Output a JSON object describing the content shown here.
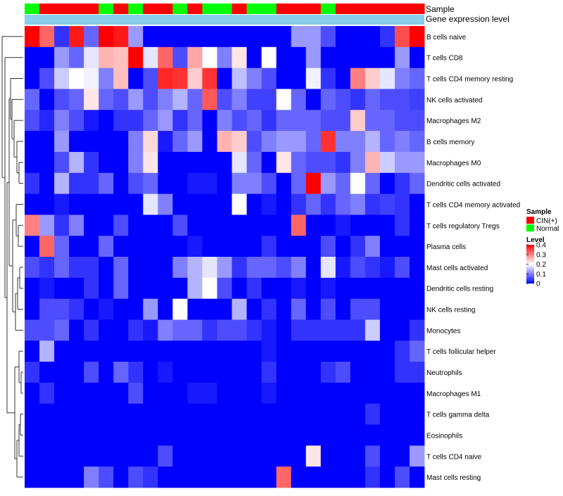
{
  "chart_data": {
    "type": "heatmap",
    "annotation_rows": [
      "Sample",
      "Gene expression level"
    ],
    "sample_groups": [
      "Normal",
      "CIN(+)",
      "CIN(+)",
      "CIN(+)",
      "CIN(+)",
      "Normal",
      "CIN(+)",
      "Normal",
      "CIN(+)",
      "CIN(+)",
      "Normal",
      "CIN(+)",
      "Normal",
      "Normal",
      "CIN(+)",
      "Normal",
      "Normal",
      "CIN(+)",
      "CIN(+)",
      "CIN(+)",
      "Normal",
      "CIN(+)",
      "CIN(+)",
      "CIN(+)",
      "CIN(+)",
      "CIN(+)",
      "CIN(+)"
    ],
    "rows": [
      "B cells naive",
      "T cells CD8",
      "T cells CD4 memory resting",
      "NK cells activated",
      "Macrophages M2",
      "B cells memory",
      "Macrophages M0",
      "Dendritic cells activated",
      "T cells CD4 memory activated",
      "T cells regulatory  Tregs",
      "Plasma cells",
      "Mast cells activated",
      "Dendritic cells resting",
      "NK cells resting",
      "Monocytes",
      "T cells follicular helper",
      "Neutrophils",
      "Macrophages M1",
      "T cells gamma delta",
      "Eosinophils",
      "T cells CD4 naive",
      "Mast cells resting"
    ],
    "values": [
      [
        0.4,
        0.32,
        0.04,
        0.38,
        0.08,
        0.4,
        0.38,
        0.12,
        0,
        0,
        0,
        0,
        0,
        0,
        0,
        0,
        0,
        0,
        0.12,
        0.12,
        0.06,
        0,
        0,
        0,
        0.04,
        0.34,
        0.4
      ],
      [
        0,
        0,
        0.12,
        0.08,
        0.18,
        0.26,
        0.25,
        0.4,
        0.18,
        0.32,
        0.06,
        0.27,
        0.2,
        0.1,
        0.22,
        0,
        0.2,
        0,
        0,
        0.12,
        0,
        0,
        0,
        0,
        0,
        0.12,
        0
      ],
      [
        0,
        0.06,
        0.16,
        0.2,
        0.19,
        0.1,
        0.25,
        0,
        0.06,
        0.37,
        0.36,
        0.24,
        0.36,
        0,
        0.15,
        0.1,
        0.06,
        0,
        0,
        0.19,
        0.04,
        0,
        0.3,
        0.24,
        0.18,
        0.1,
        0.08
      ],
      [
        0.08,
        0,
        0.06,
        0.08,
        0.22,
        0.08,
        0.06,
        0.12,
        0.06,
        0.1,
        0.14,
        0.08,
        0.33,
        0.06,
        0.1,
        0.05,
        0.05,
        0.2,
        0.08,
        0,
        0.08,
        0.06,
        0.04,
        0.08,
        0.06,
        0.06,
        0.05
      ],
      [
        0.06,
        0.03,
        0.1,
        0.06,
        0.02,
        0,
        0.04,
        0.04,
        0.08,
        0.12,
        0.04,
        0.08,
        0,
        0.1,
        0.06,
        0.08,
        0.04,
        0.08,
        0.08,
        0.08,
        0.06,
        0.06,
        0.24,
        0.08,
        0.08,
        0.06,
        0.06
      ],
      [
        0,
        0,
        0.12,
        0,
        0,
        0,
        0,
        0.1,
        0.23,
        0.02,
        0.08,
        0.12,
        0,
        0.26,
        0.24,
        0.06,
        0.1,
        0.12,
        0.12,
        0.08,
        0.36,
        0.1,
        0.1,
        0.14,
        0.08,
        0.1,
        0.08
      ],
      [
        0,
        0,
        0.06,
        0.14,
        0.04,
        0,
        0,
        0.1,
        0.22,
        0,
        0,
        0,
        0,
        0,
        0.18,
        0.08,
        0,
        0.22,
        0.08,
        0.06,
        0.06,
        0.04,
        0.1,
        0.26,
        0.16,
        0.12,
        0.12
      ],
      [
        0.04,
        0,
        0.14,
        0.04,
        0.04,
        0.08,
        0,
        0.06,
        0.08,
        0,
        0,
        0.02,
        0.02,
        0,
        0.1,
        0.1,
        0.06,
        0,
        0.08,
        0.4,
        0.12,
        0.08,
        0.2,
        0.08,
        0,
        0.04,
        0.08
      ],
      [
        0,
        0,
        0.02,
        0,
        0,
        0,
        0,
        0,
        0.18,
        0.1,
        0,
        0,
        0,
        0,
        0.2,
        0,
        0.02,
        0,
        0.04,
        0.08,
        0.04,
        0.08,
        0.1,
        0.04,
        0.05,
        0.04,
        0
      ],
      [
        0.3,
        0.12,
        0.04,
        0.1,
        0,
        0,
        0.06,
        0,
        0,
        0,
        0.06,
        0,
        0,
        0,
        0,
        0,
        0,
        0,
        0.32,
        0,
        0,
        0.02,
        0,
        0,
        0,
        0.04,
        0
      ],
      [
        0,
        0.32,
        0.08,
        0,
        0,
        0.08,
        0,
        0,
        0,
        0,
        0,
        0.02,
        0,
        0,
        0,
        0,
        0.04,
        0,
        0,
        0,
        0.06,
        0,
        0.04,
        0.1,
        0,
        0,
        0
      ],
      [
        0.06,
        0.04,
        0.08,
        0.04,
        0.04,
        0,
        0.08,
        0,
        0,
        0,
        0.1,
        0.14,
        0.18,
        0.12,
        0.04,
        0.08,
        0.08,
        0.06,
        0.1,
        0,
        0.18,
        0.02,
        0.06,
        0.04,
        0.02,
        0.06,
        0
      ],
      [
        0,
        0.02,
        0,
        0,
        0.04,
        0,
        0.08,
        0,
        0,
        0,
        0,
        0.14,
        0.2,
        0.06,
        0,
        0.04,
        0,
        0,
        0.02,
        0,
        0.02,
        0,
        0,
        0,
        0,
        0,
        0
      ],
      [
        0,
        0.06,
        0.06,
        0.04,
        0,
        0.02,
        0,
        0,
        0.12,
        0,
        0.2,
        0,
        0,
        0,
        0.14,
        0,
        0.04,
        0,
        0.08,
        0,
        0.06,
        0,
        0.06,
        0.06,
        0,
        0,
        0
      ],
      [
        0.06,
        0.06,
        0.08,
        0,
        0.04,
        0,
        0,
        0.04,
        0.02,
        0.1,
        0.08,
        0.08,
        0.04,
        0.06,
        0.06,
        0.04,
        0.02,
        0,
        0.04,
        0.04,
        0.04,
        0.04,
        0.04,
        0.16,
        0,
        0,
        0.04
      ],
      [
        0,
        0.14,
        0,
        0,
        0,
        0,
        0,
        0,
        0,
        0,
        0,
        0,
        0,
        0,
        0,
        0,
        0.02,
        0,
        0,
        0,
        0,
        0,
        0,
        0,
        0,
        0.04,
        0.08
      ],
      [
        0.04,
        0,
        0,
        0,
        0.06,
        0,
        0.08,
        0.04,
        0,
        0.02,
        0,
        0,
        0,
        0,
        0,
        0,
        0.04,
        0,
        0,
        0,
        0.04,
        0.06,
        0,
        0,
        0,
        0.04,
        0.04
      ],
      [
        0,
        0.04,
        0,
        0,
        0,
        0,
        0,
        0.06,
        0,
        0,
        0,
        0.02,
        0.02,
        0,
        0,
        0,
        0.02,
        0,
        0,
        0,
        0,
        0,
        0,
        0,
        0,
        0,
        0
      ],
      [
        0,
        0,
        0,
        0,
        0,
        0,
        0,
        0,
        0,
        0,
        0,
        0,
        0,
        0,
        0,
        0,
        0,
        0,
        0,
        0,
        0,
        0,
        0,
        0.04,
        0,
        0,
        0
      ],
      [
        0,
        0,
        0,
        0,
        0,
        0,
        0,
        0,
        0,
        0,
        0,
        0,
        0,
        0,
        0,
        0,
        0,
        0,
        0,
        0,
        0,
        0,
        0,
        0,
        0,
        0,
        0
      ],
      [
        0,
        0,
        0,
        0,
        0,
        0,
        0,
        0,
        0,
        0.06,
        0,
        0,
        0,
        0,
        0,
        0,
        0,
        0,
        0,
        0.22,
        0,
        0,
        0,
        0.06,
        0,
        0,
        0.12
      ],
      [
        0,
        0,
        0,
        0,
        0.1,
        0.06,
        0,
        0.06,
        0.04,
        0,
        0,
        0,
        0,
        0,
        0,
        0,
        0,
        0.32,
        0,
        0,
        0,
        0,
        0,
        0.04,
        0,
        0.06,
        0
      ]
    ],
    "value_range": [
      0,
      0.4
    ],
    "color_scale": [
      "#0000ff",
      "#ffffff",
      "#ff0000"
    ],
    "legend": {
      "sample_title": "Sample",
      "sample_items": [
        {
          "label": "CIN(+)",
          "color": "#ff0000"
        },
        {
          "label": "Normal",
          "color": "#00ff00"
        }
      ],
      "level_title": "Level",
      "level_ticks": [
        0.4,
        0.3,
        0.2,
        0.1,
        0
      ],
      "level_tick_labels": [
        "0.4",
        "0.3",
        "0.2",
        "0.1",
        "0"
      ]
    },
    "expression_bar_color": "#87ceeb"
  }
}
